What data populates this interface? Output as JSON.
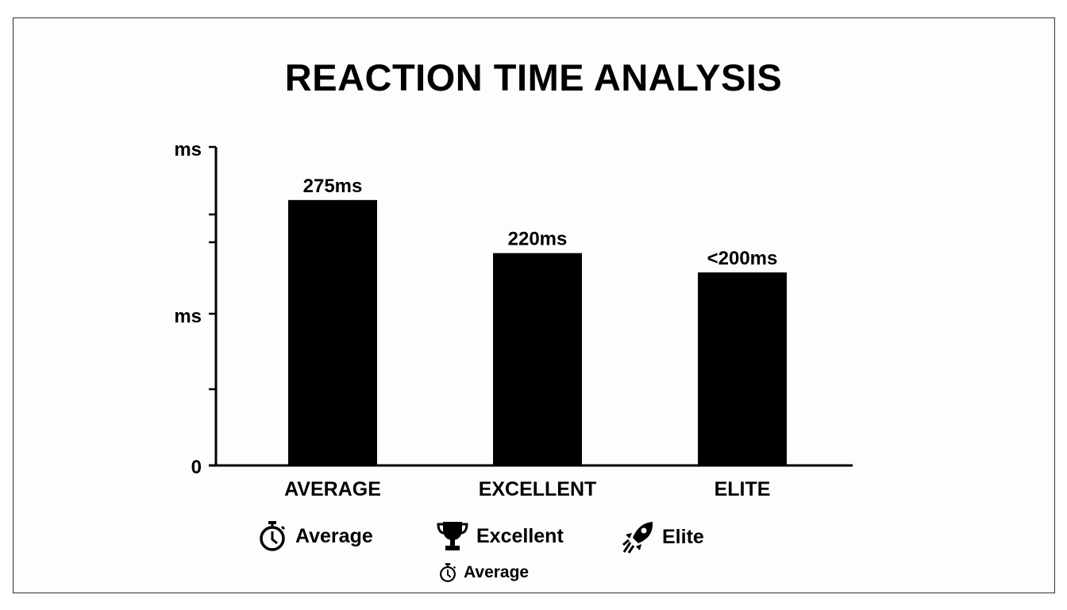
{
  "chart_data": {
    "type": "bar",
    "title": "REACTION TIME ANALYSIS",
    "categories": [
      "AVERAGE",
      "EXCELLENT",
      "ELITE"
    ],
    "values": [
      275,
      220,
      200
    ],
    "data_labels": [
      "275ms",
      "220ms",
      "<200ms"
    ],
    "xlabel": "",
    "ylabel": "",
    "ylim": [
      0,
      330
    ],
    "y_tick_labels": [
      "ms",
      "ms",
      "0"
    ],
    "bar_color": "#000000",
    "grid": false,
    "legend_position": "bottom",
    "legend": [
      {
        "icon": "stopwatch-icon",
        "label": "Average"
      },
      {
        "icon": "trophy-icon",
        "label": "Excellent"
      },
      {
        "icon": "rocket-icon",
        "label": "Elite"
      },
      {
        "icon": "stopwatch-icon",
        "label": "Average"
      }
    ]
  }
}
